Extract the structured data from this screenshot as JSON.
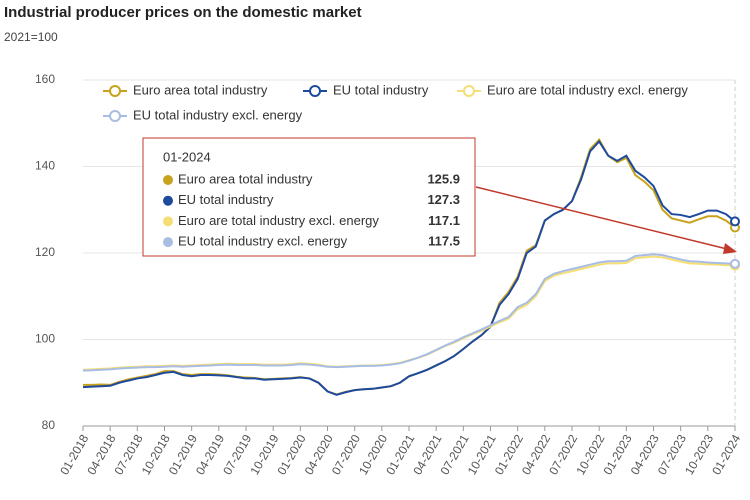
{
  "chart_data": {
    "type": "line",
    "title": "Industrial producer prices on the domestic market",
    "subtitle": "2021=100",
    "categories": [
      "01-2018",
      null,
      null,
      "04-2018",
      null,
      null,
      "07-2018",
      null,
      null,
      "10-2018",
      null,
      null,
      "01-2019",
      null,
      null,
      "04-2019",
      null,
      null,
      "07-2019",
      null,
      null,
      "10-2019",
      null,
      null,
      "01-2020",
      null,
      null,
      "04-2020",
      null,
      null,
      "07-2020",
      null,
      null,
      "10-2020",
      null,
      null,
      "01-2021",
      null,
      null,
      "04-2021",
      null,
      null,
      "07-2021",
      null,
      null,
      "10-2021",
      null,
      null,
      "01-2022",
      null,
      null,
      "04-2022",
      null,
      null,
      "07-2022",
      null,
      null,
      "10-2022",
      null,
      null,
      "01-2023",
      null,
      null,
      "04-2023",
      null,
      null,
      "07-2023",
      null,
      null,
      "10-2023",
      null,
      null,
      "01-2024"
    ],
    "series": [
      {
        "name": "Euro area total industry",
        "color": "#c8a21c",
        "values": [
          89.5,
          89.5,
          89.6,
          89.5,
          90.2,
          90.8,
          91.2,
          91.6,
          92,
          92.7,
          92.7,
          92,
          91.8,
          92,
          92,
          91.9,
          91.7,
          91.4,
          91.2,
          91.1,
          90.8,
          90.9,
          91,
          91.1,
          91.3,
          91,
          90,
          88,
          87.3,
          87.9,
          88.3,
          88.5,
          88.6,
          88.9,
          89.2,
          90,
          91.5,
          92.2,
          93,
          94,
          95,
          96.2,
          97.8,
          99.5,
          101,
          103,
          108.5,
          111,
          114.5,
          120.5,
          121.8,
          127.5,
          129,
          130,
          132,
          137.5,
          144,
          146.2,
          142.5,
          141,
          142,
          138,
          136.5,
          134.5,
          130,
          128,
          127.5,
          127,
          127.8,
          128.5,
          128.5,
          127.5,
          125.9
        ]
      },
      {
        "name": "EU total industry",
        "color": "#1e4a9e",
        "values": [
          89,
          89.1,
          89.2,
          89.3,
          90,
          90.5,
          91,
          91.3,
          91.8,
          92.3,
          92.5,
          91.8,
          91.5,
          91.8,
          91.8,
          91.7,
          91.6,
          91.3,
          91,
          91,
          90.7,
          90.8,
          90.9,
          91,
          91.2,
          91,
          90,
          88,
          87.2,
          87.8,
          88.3,
          88.5,
          88.6,
          88.9,
          89.2,
          90,
          91.5,
          92.2,
          93,
          94,
          95,
          96.2,
          97.8,
          99.5,
          101,
          103,
          108,
          110.5,
          114,
          120,
          121.5,
          127.5,
          129,
          130,
          132,
          137,
          143.5,
          145.8,
          142.5,
          141.3,
          142.5,
          139,
          137.5,
          135.5,
          131,
          129,
          128.8,
          128.3,
          129,
          129.8,
          129.8,
          129,
          127.3
        ]
      },
      {
        "name": "Euro are total industry excl. energy",
        "color": "#f5de74",
        "values": [
          93,
          93.1,
          93.2,
          93.3,
          93.5,
          93.6,
          93.7,
          93.8,
          93.8,
          93.9,
          94,
          93.9,
          94,
          94.1,
          94.2,
          94.3,
          94.4,
          94.3,
          94.3,
          94.3,
          94.2,
          94.2,
          94.2,
          94.3,
          94.5,
          94.4,
          94.2,
          93.8,
          93.7,
          93.8,
          93.9,
          94,
          94,
          94.1,
          94.3,
          94.6,
          95.2,
          95.8,
          96.5,
          97.5,
          98.5,
          99.3,
          100.3,
          101.2,
          102,
          103,
          104,
          104.8,
          107,
          108,
          110,
          113.5,
          114.8,
          115.3,
          115.8,
          116.3,
          116.8,
          117.3,
          117.6,
          117.6,
          117.7,
          118.8,
          119,
          119.2,
          119,
          118.5,
          118,
          117.6,
          117.5,
          117.4,
          117.3,
          117.2,
          117.1
        ]
      },
      {
        "name": "EU total industry excl. energy",
        "color": "#a8bde3",
        "values": [
          92.8,
          92.9,
          93,
          93.1,
          93.3,
          93.4,
          93.5,
          93.6,
          93.6,
          93.7,
          93.8,
          93.7,
          93.8,
          93.9,
          94,
          94.1,
          94.2,
          94.1,
          94.1,
          94.1,
          94,
          94,
          94,
          94.1,
          94.3,
          94.2,
          94,
          93.7,
          93.6,
          93.7,
          93.8,
          93.9,
          93.9,
          94,
          94.2,
          94.5,
          95.1,
          95.8,
          96.6,
          97.6,
          98.6,
          99.5,
          100.5,
          101.4,
          102.3,
          103.3,
          104.3,
          105.2,
          107.5,
          108.5,
          110.5,
          114,
          115.2,
          115.8,
          116.3,
          116.8,
          117.3,
          117.8,
          118.1,
          118.1,
          118.2,
          119.3,
          119.5,
          119.7,
          119.5,
          119,
          118.5,
          118.1,
          118,
          117.8,
          117.7,
          117.6,
          117.5
        ]
      }
    ],
    "ylim": [
      80,
      160
    ],
    "yticks": [
      80,
      100,
      120,
      140,
      160
    ],
    "grid": true
  }
}
